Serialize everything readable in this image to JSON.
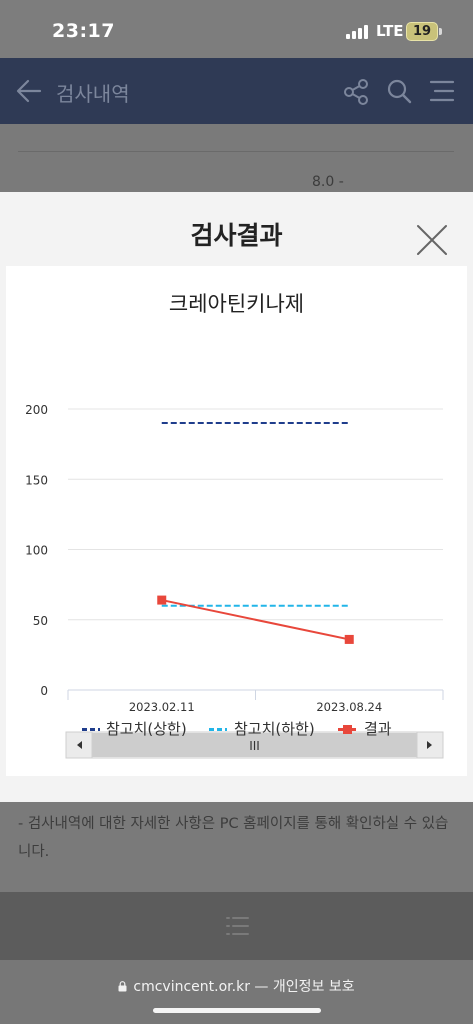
{
  "status_bar": {
    "time": "23:17",
    "network": "LTE",
    "battery": "19"
  },
  "header": {
    "title": "검사내역"
  },
  "background_rows": {
    "value_1": "8.0 -"
  },
  "modal": {
    "title": "검사결과",
    "close_icon": "close-icon"
  },
  "chart_data": {
    "type": "line",
    "title": "크레아틴키나제",
    "categories": [
      "2023.02.11",
      "2023.08.24"
    ],
    "ylim": [
      0,
      200
    ],
    "yticks": [
      0,
      50,
      100,
      150,
      200
    ],
    "grid": true,
    "legend_position": "bottom",
    "series": [
      {
        "name": "참고치(상한)",
        "values": [
          190,
          190
        ],
        "color": "#1f3d8c",
        "style": "dashed"
      },
      {
        "name": "참고치(하한)",
        "values": [
          60,
          60
        ],
        "color": "#22b5e8",
        "style": "dashed"
      },
      {
        "name": "결과",
        "values": [
          64,
          36
        ],
        "color": "#e8473b",
        "style": "solid-square-markers"
      }
    ],
    "scrollbar_thumb_label": "III"
  },
  "bottom_note": {
    "text": "- 검사내역에 대한 자세한 사항은 PC 홈페이지를 통해 확인하실 수 있습니다."
  },
  "browser": {
    "url": "cmcvincent.or.kr",
    "suffix": " — 개인정보 보호"
  }
}
